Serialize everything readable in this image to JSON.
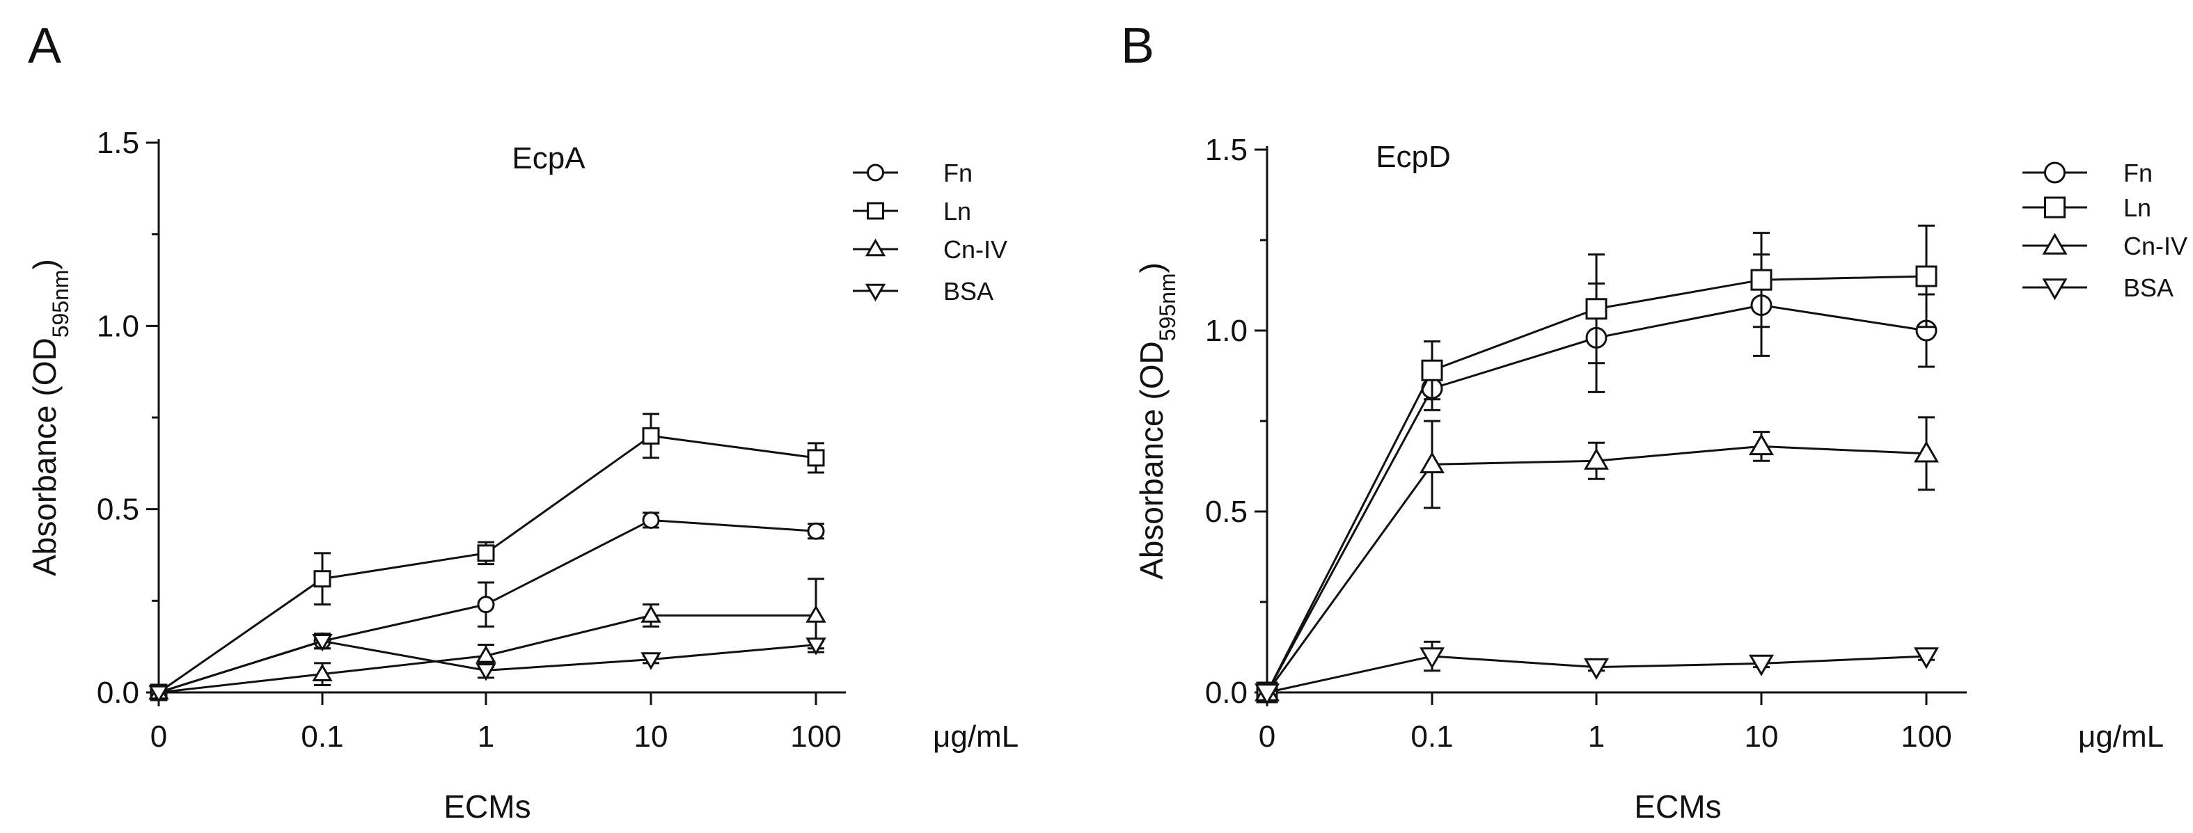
{
  "figure": {
    "panels": [
      "A",
      "B"
    ]
  },
  "chart_data": [
    {
      "panel": "A",
      "type": "line",
      "title": "EcpA",
      "categories": [
        "0",
        "0.1",
        "1",
        "10",
        "100"
      ],
      "xunit": "μg/mL",
      "xlabel": "ECMs",
      "ylabel_main": "Absorbance (OD",
      "ylabel_sub": "595nm",
      "ylabel_end": ")",
      "ylim": [
        0,
        1.5
      ],
      "yticks": [
        "0.0",
        "0.5",
        "1.0",
        "1.5"
      ],
      "ytick_values": [
        0,
        0.5,
        1.0,
        1.5
      ],
      "legend_position": "top-right",
      "series": [
        {
          "name": "Fn",
          "marker": "circle",
          "values": [
            0,
            0.14,
            0.24,
            0.47,
            0.44
          ],
          "errors": [
            0,
            0.02,
            0.06,
            0.02,
            0.02
          ]
        },
        {
          "name": "Ln",
          "marker": "square",
          "values": [
            0,
            0.31,
            0.38,
            0.7,
            0.64
          ],
          "errors": [
            0,
            0.07,
            0.03,
            0.06,
            0.04
          ]
        },
        {
          "name": "Cn-IV",
          "marker": "triangle",
          "values": [
            0,
            0.05,
            0.1,
            0.21,
            0.21
          ],
          "errors": [
            0,
            0.03,
            0.03,
            0.03,
            0.1
          ]
        },
        {
          "name": "BSA",
          "marker": "tri-down",
          "values": [
            0,
            0.14,
            0.06,
            0.09,
            0.13
          ],
          "errors": [
            0,
            0.02,
            0.02,
            0.01,
            0.01
          ]
        }
      ]
    },
    {
      "panel": "B",
      "type": "line",
      "title": "EcpD",
      "categories": [
        "0",
        "0.1",
        "1",
        "10",
        "100"
      ],
      "xunit": "μg/mL",
      "xlabel": "ECMs",
      "ylabel_main": "Absorbance (OD",
      "ylabel_sub": "595nm",
      "ylabel_end": ")",
      "ylim": [
        0,
        1.5
      ],
      "yticks": [
        "0.0",
        "0.5",
        "1.0",
        "1.5"
      ],
      "ytick_values": [
        0,
        0.5,
        1.0,
        1.5
      ],
      "legend_position": "top-right",
      "series": [
        {
          "name": "Fn",
          "marker": "circle",
          "values": [
            0,
            0.84,
            0.98,
            1.07,
            1.0
          ],
          "errors": [
            0,
            0.06,
            0.15,
            0.14,
            0.1
          ]
        },
        {
          "name": "Ln",
          "marker": "square",
          "values": [
            0,
            0.89,
            1.06,
            1.14,
            1.15
          ],
          "errors": [
            0,
            0.08,
            0.15,
            0.13,
            0.14
          ]
        },
        {
          "name": "Cn-IV",
          "marker": "triangle",
          "values": [
            0,
            0.63,
            0.64,
            0.68,
            0.66
          ],
          "errors": [
            0,
            0.12,
            0.05,
            0.04,
            0.1
          ]
        },
        {
          "name": "BSA",
          "marker": "tri-down",
          "values": [
            0,
            0.1,
            0.07,
            0.08,
            0.1
          ],
          "errors": [
            0,
            0.04,
            0.01,
            0.01,
            0.01
          ]
        }
      ]
    }
  ]
}
